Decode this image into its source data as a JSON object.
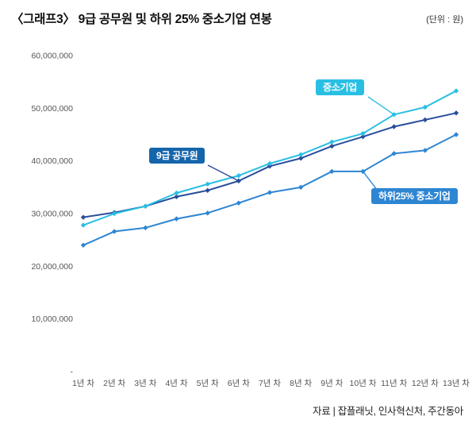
{
  "header": {
    "title": "〈그래프3〉 9급 공무원 및 하위 25% 중소기업 연봉",
    "unit_note": "(단위 : 원)"
  },
  "footer": {
    "source": "자료 | 잡플래닛, 인사혁신처, 주간동아"
  },
  "chart_data": {
    "type": "line",
    "title": "9급 공무원 및 하위 25% 중소기업 연봉",
    "xlabel": "",
    "ylabel": "원",
    "ylim": [
      0,
      60000000
    ],
    "ytick_step": 10000000,
    "ytick_labels": [
      "-",
      "10,000,000",
      "20,000,000",
      "30,000,000",
      "40,000,000",
      "50,000,000",
      "60,000,000"
    ],
    "grid": false,
    "legend_position": "inline-annotations",
    "categories": [
      "1년 차",
      "2년 차",
      "3년 차",
      "4년 차",
      "5년 차",
      "6년 차",
      "7년 차",
      "8년 차",
      "9년 차",
      "10년 차",
      "11년 차",
      "12년 차",
      "13년 차"
    ],
    "series": [
      {
        "name": "하위25% 중소기업",
        "color": "#2e86d2",
        "values": [
          24000000,
          26600000,
          27300000,
          29000000,
          30100000,
          32000000,
          34000000,
          35000000,
          38000000,
          38000000,
          41400000,
          42000000,
          45000000
        ]
      },
      {
        "name": "9급 공무원",
        "color": "#2a4d9b",
        "values": [
          29300000,
          30200000,
          31400000,
          33200000,
          34400000,
          36200000,
          39000000,
          40500000,
          42800000,
          44600000,
          46500000,
          47800000,
          49100000
        ]
      },
      {
        "name": "중소기업",
        "color": "#29bfe3",
        "values": [
          27800000,
          30000000,
          31400000,
          33900000,
          35600000,
          37200000,
          39500000,
          41200000,
          43600000,
          45200000,
          48800000,
          50200000,
          53300000
        ]
      }
    ]
  },
  "annotations": [
    {
      "label": "중소기업",
      "badge_color": "#29bfe3"
    },
    {
      "label": "9급 공무원",
      "badge_color": "#1565ab"
    },
    {
      "label": "하위25% 중소기업",
      "badge_color": "#2e86d2"
    }
  ]
}
